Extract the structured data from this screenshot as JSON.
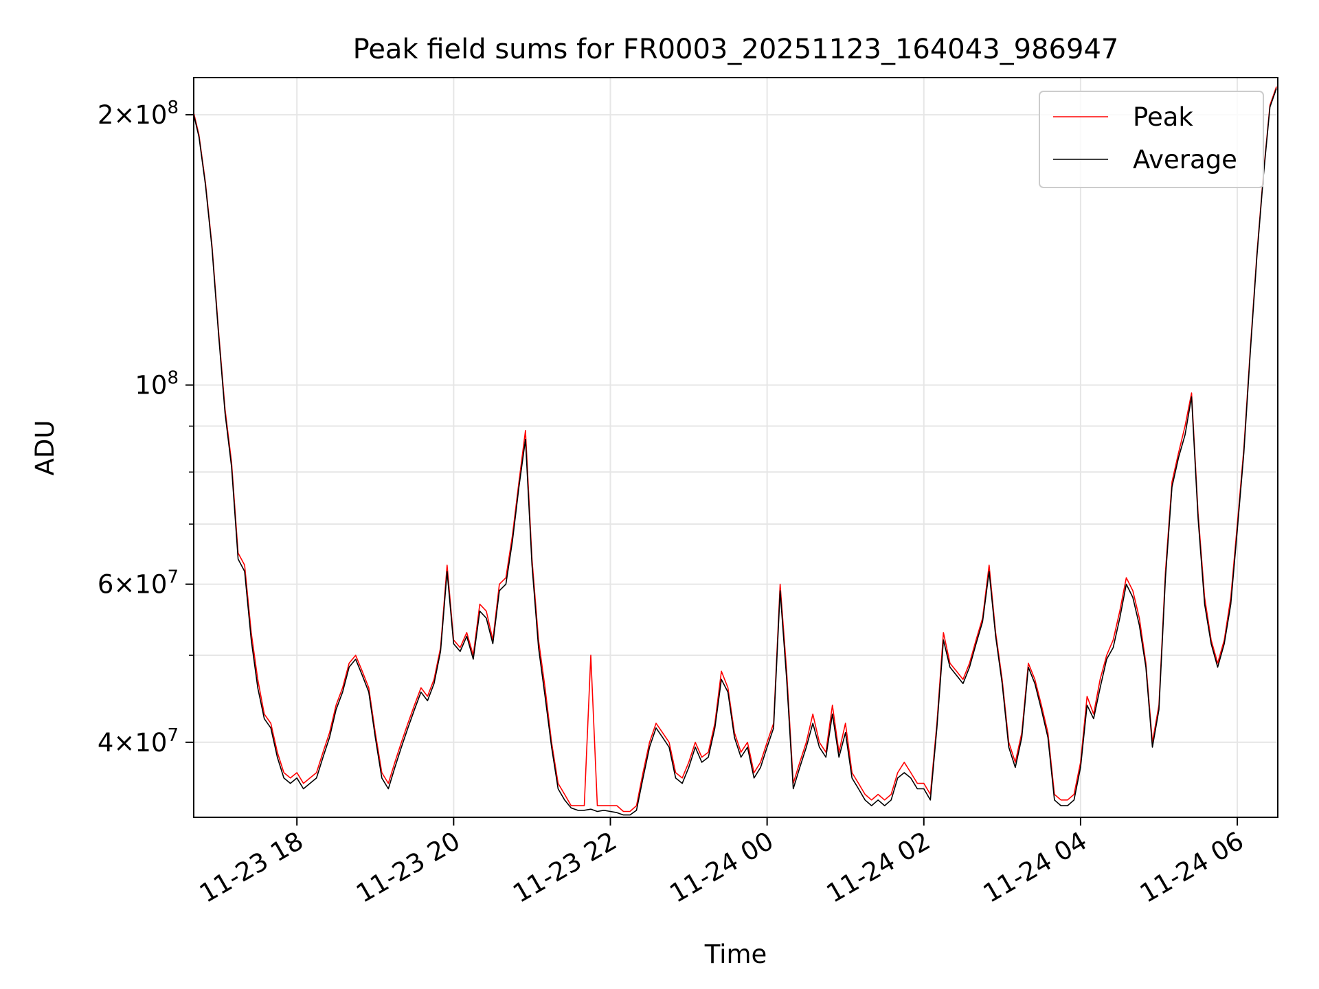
{
  "chart_data": {
    "type": "line",
    "title": "Peak field sums for FR0003_20251123_164043_986947",
    "xlabel": "Time",
    "ylabel": "ADU",
    "yscale": "log",
    "ylim": [
      33000000,
      220000000
    ],
    "xlim": [
      "2025-11-23 16:41",
      "2025-11-24 06:31"
    ],
    "grid": true,
    "legend_position": "top-right",
    "x_ticks": [
      {
        "value": "2025-11-23 18:00",
        "label": "11-23 18"
      },
      {
        "value": "2025-11-23 20:00",
        "label": "11-23 20"
      },
      {
        "value": "2025-11-23 22:00",
        "label": "11-23 22"
      },
      {
        "value": "2025-11-24 00:00",
        "label": "11-24 00"
      },
      {
        "value": "2025-11-24 02:00",
        "label": "11-24 02"
      },
      {
        "value": "2025-11-24 04:00",
        "label": "11-24 04"
      },
      {
        "value": "2025-11-24 06:00",
        "label": "11-24 06"
      }
    ],
    "y_ticks": [
      {
        "value": 40000000,
        "base": "4",
        "exp": "7"
      },
      {
        "value": 60000000,
        "base": "6",
        "exp": "7"
      },
      {
        "value": 100000000,
        "base": "",
        "exp": "8"
      },
      {
        "value": 200000000,
        "base": "2",
        "exp": "8"
      }
    ],
    "times_x": [
      "2025-11-23 16:41",
      "2025-11-23 16:45",
      "2025-11-23 16:50",
      "2025-11-23 16:55",
      "2025-11-23 17:00",
      "2025-11-23 17:05",
      "2025-11-23 17:10",
      "2025-11-23 17:15",
      "2025-11-23 17:20",
      "2025-11-23 17:25",
      "2025-11-23 17:30",
      "2025-11-23 17:35",
      "2025-11-23 17:40",
      "2025-11-23 17:45",
      "2025-11-23 17:50",
      "2025-11-23 17:55",
      "2025-11-23 18:00",
      "2025-11-23 18:05",
      "2025-11-23 18:10",
      "2025-11-23 18:15",
      "2025-11-23 18:20",
      "2025-11-23 18:25",
      "2025-11-23 18:30",
      "2025-11-23 18:35",
      "2025-11-23 18:40",
      "2025-11-23 18:45",
      "2025-11-23 18:50",
      "2025-11-23 18:55",
      "2025-11-23 19:00",
      "2025-11-23 19:05",
      "2025-11-23 19:10",
      "2025-11-23 19:15",
      "2025-11-23 19:20",
      "2025-11-23 19:25",
      "2025-11-23 19:30",
      "2025-11-23 19:35",
      "2025-11-23 19:40",
      "2025-11-23 19:45",
      "2025-11-23 19:50",
      "2025-11-23 19:55",
      "2025-11-23 20:00",
      "2025-11-23 20:05",
      "2025-11-23 20:10",
      "2025-11-23 20:15",
      "2025-11-23 20:20",
      "2025-11-23 20:25",
      "2025-11-23 20:30",
      "2025-11-23 20:35",
      "2025-11-23 20:40",
      "2025-11-23 20:45",
      "2025-11-23 20:50",
      "2025-11-23 20:55",
      "2025-11-23 21:00",
      "2025-11-23 21:05",
      "2025-11-23 21:10",
      "2025-11-23 21:15",
      "2025-11-23 21:20",
      "2025-11-23 21:25",
      "2025-11-23 21:30",
      "2025-11-23 21:35",
      "2025-11-23 21:40",
      "2025-11-23 21:45",
      "2025-11-23 21:50",
      "2025-11-23 21:55",
      "2025-11-23 22:00",
      "2025-11-23 22:05",
      "2025-11-23 22:10",
      "2025-11-23 22:15",
      "2025-11-23 22:20",
      "2025-11-23 22:25",
      "2025-11-23 22:30",
      "2025-11-23 22:35",
      "2025-11-23 22:40",
      "2025-11-23 22:45",
      "2025-11-23 22:50",
      "2025-11-23 22:55",
      "2025-11-23 23:00",
      "2025-11-23 23:05",
      "2025-11-23 23:10",
      "2025-11-23 23:15",
      "2025-11-23 23:20",
      "2025-11-23 23:25",
      "2025-11-23 23:30",
      "2025-11-23 23:35",
      "2025-11-23 23:40",
      "2025-11-23 23:45",
      "2025-11-23 23:50",
      "2025-11-23 23:55",
      "2025-11-24 00:00",
      "2025-11-24 00:05",
      "2025-11-24 00:10",
      "2025-11-24 00:15",
      "2025-11-24 00:20",
      "2025-11-24 00:25",
      "2025-11-24 00:30",
      "2025-11-24 00:35",
      "2025-11-24 00:40",
      "2025-11-24 00:45",
      "2025-11-24 00:50",
      "2025-11-24 00:55",
      "2025-11-24 01:00",
      "2025-11-24 01:05",
      "2025-11-24 01:10",
      "2025-11-24 01:15",
      "2025-11-24 01:20",
      "2025-11-24 01:25",
      "2025-11-24 01:30",
      "2025-11-24 01:35",
      "2025-11-24 01:40",
      "2025-11-24 01:45",
      "2025-11-24 01:50",
      "2025-11-24 01:55",
      "2025-11-24 02:00",
      "2025-11-24 02:05",
      "2025-11-24 02:10",
      "2025-11-24 02:15",
      "2025-11-24 02:20",
      "2025-11-24 02:25",
      "2025-11-24 02:30",
      "2025-11-24 02:35",
      "2025-11-24 02:40",
      "2025-11-24 02:45",
      "2025-11-24 02:50",
      "2025-11-24 02:55",
      "2025-11-24 03:00",
      "2025-11-24 03:05",
      "2025-11-24 03:10",
      "2025-11-24 03:15",
      "2025-11-24 03:20",
      "2025-11-24 03:25",
      "2025-11-24 03:30",
      "2025-11-24 03:35",
      "2025-11-24 03:40",
      "2025-11-24 03:45",
      "2025-11-24 03:50",
      "2025-11-24 03:55",
      "2025-11-24 04:00",
      "2025-11-24 04:05",
      "2025-11-24 04:10",
      "2025-11-24 04:15",
      "2025-11-24 04:20",
      "2025-11-24 04:25",
      "2025-11-24 04:30",
      "2025-11-24 04:35",
      "2025-11-24 04:40",
      "2025-11-24 04:45",
      "2025-11-24 04:50",
      "2025-11-24 04:55",
      "2025-11-24 05:00",
      "2025-11-24 05:05",
      "2025-11-24 05:10",
      "2025-11-24 05:15",
      "2025-11-24 05:20",
      "2025-11-24 05:25",
      "2025-11-24 05:30",
      "2025-11-24 05:35",
      "2025-11-24 05:40",
      "2025-11-24 05:45",
      "2025-11-24 05:50",
      "2025-11-24 05:55",
      "2025-11-24 06:00",
      "2025-11-24 06:05",
      "2025-11-24 06:10",
      "2025-11-24 06:15",
      "2025-11-24 06:20",
      "2025-11-24 06:25",
      "2025-11-24 06:30"
    ],
    "series": [
      {
        "name": "Peak",
        "color": "#ff0000",
        "values": [
          201000000,
          190000000,
          168000000,
          143000000,
          115000000,
          94000000,
          82000000,
          65000000,
          63000000,
          53000000,
          47000000,
          43000000,
          42000000,
          39000000,
          37000000,
          36500000,
          37000000,
          36000000,
          36500000,
          37000000,
          39000000,
          41000000,
          44000000,
          46000000,
          49000000,
          50000000,
          48000000,
          46000000,
          41000000,
          37000000,
          36000000,
          38000000,
          40000000,
          42000000,
          44000000,
          46000000,
          45000000,
          47000000,
          51000000,
          63000000,
          52000000,
          51000000,
          53000000,
          50000000,
          57000000,
          56000000,
          52000000,
          60000000,
          61000000,
          68000000,
          78000000,
          89000000,
          64000000,
          52000000,
          46000000,
          40000000,
          36000000,
          35000000,
          34000000,
          34000000,
          34000000,
          50000000,
          34000000,
          34000000,
          34000000,
          34000000,
          33500000,
          33500000,
          34000000,
          37000000,
          40000000,
          42000000,
          41000000,
          40000000,
          37000000,
          36500000,
          38000000,
          40000000,
          38500000,
          39000000,
          42000000,
          48000000,
          46000000,
          41000000,
          39000000,
          40000000,
          37000000,
          38000000,
          40000000,
          42000000,
          60000000,
          48000000,
          36000000,
          38000000,
          40000000,
          43000000,
          40000000,
          39000000,
          44000000,
          39000000,
          42000000,
          37000000,
          36000000,
          35000000,
          34500000,
          35000000,
          34500000,
          35000000,
          37000000,
          38000000,
          37000000,
          36000000,
          36000000,
          35000000,
          42000000,
          53000000,
          49000000,
          48000000,
          47000000,
          49000000,
          52000000,
          55000000,
          63000000,
          53000000,
          47000000,
          40000000,
          38000000,
          41000000,
          49000000,
          47000000,
          44000000,
          41000000,
          35000000,
          34500000,
          34500000,
          35000000,
          38000000,
          45000000,
          43000000,
          47000000,
          50000000,
          52000000,
          56000000,
          61000000,
          59000000,
          55000000,
          49000000,
          40000000,
          44000000,
          62000000,
          78000000,
          84000000,
          90000000,
          98000000,
          72000000,
          58000000,
          52000000,
          49000000,
          52000000,
          58000000,
          70000000,
          85000000,
          110000000,
          140000000,
          172000000,
          205000000,
          215000000
        ]
      },
      {
        "name": "Average",
        "color": "#000000",
        "values": [
          200000000,
          189000000,
          167000000,
          142000000,
          114000000,
          93000000,
          81000000,
          64000000,
          62000000,
          52000000,
          46000000,
          42500000,
          41500000,
          38500000,
          36500000,
          36000000,
          36500000,
          35500000,
          36000000,
          36500000,
          38500000,
          40500000,
          43500000,
          45500000,
          48500000,
          49500000,
          47500000,
          45500000,
          40500000,
          36500000,
          35500000,
          37500000,
          39500000,
          41500000,
          43500000,
          45500000,
          44500000,
          46500000,
          50500000,
          62000000,
          51500000,
          50500000,
          52500000,
          49500000,
          56000000,
          55000000,
          51500000,
          59000000,
          60000000,
          67000000,
          77000000,
          87000000,
          63000000,
          51000000,
          45000000,
          39500000,
          35500000,
          34500000,
          33800000,
          33600000,
          33600000,
          33700000,
          33500000,
          33600000,
          33500000,
          33400000,
          33200000,
          33200000,
          33600000,
          36500000,
          39500000,
          41500000,
          40500000,
          39500000,
          36500000,
          36000000,
          37500000,
          39500000,
          38000000,
          38500000,
          41500000,
          47000000,
          45500000,
          40500000,
          38500000,
          39500000,
          36500000,
          37500000,
          39500000,
          41500000,
          59000000,
          47000000,
          35500000,
          37500000,
          39500000,
          42000000,
          39500000,
          38500000,
          43000000,
          38500000,
          41000000,
          36500000,
          35500000,
          34500000,
          34000000,
          34500000,
          34000000,
          34500000,
          36500000,
          37000000,
          36500000,
          35500000,
          35500000,
          34500000,
          41500000,
          52000000,
          48500000,
          47500000,
          46500000,
          48500000,
          51500000,
          54500000,
          62000000,
          52500000,
          46500000,
          39500000,
          37500000,
          40500000,
          48500000,
          46500000,
          43500000,
          40500000,
          34500000,
          34000000,
          34000000,
          34500000,
          37500000,
          44000000,
          42500000,
          46000000,
          49500000,
          51000000,
          55000000,
          60000000,
          58000000,
          54000000,
          48500000,
          39500000,
          43500000,
          61000000,
          77000000,
          83000000,
          88000000,
          97000000,
          71000000,
          57000000,
          51500000,
          48500000,
          51500000,
          57000000,
          69000000,
          84000000,
          109000000,
          139000000,
          171000000,
          204000000,
          214000000
        ]
      }
    ]
  }
}
